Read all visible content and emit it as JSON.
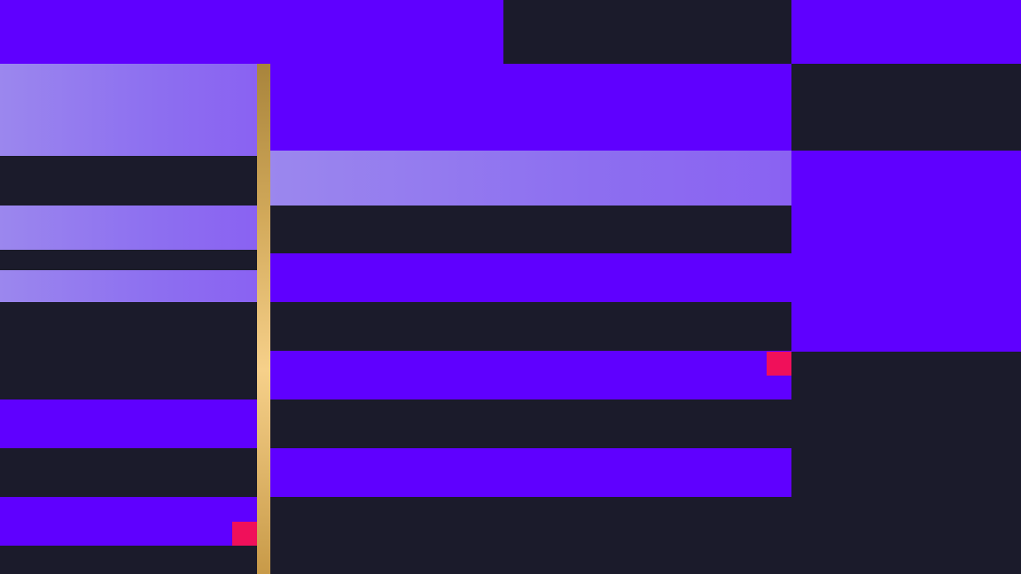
{
  "colors": {
    "background": "#1b1b2b",
    "purple": "#5f00ff",
    "light_purple": "#8d6ff0",
    "marker_red": "#f0105a",
    "gold": "#d2a95a"
  }
}
